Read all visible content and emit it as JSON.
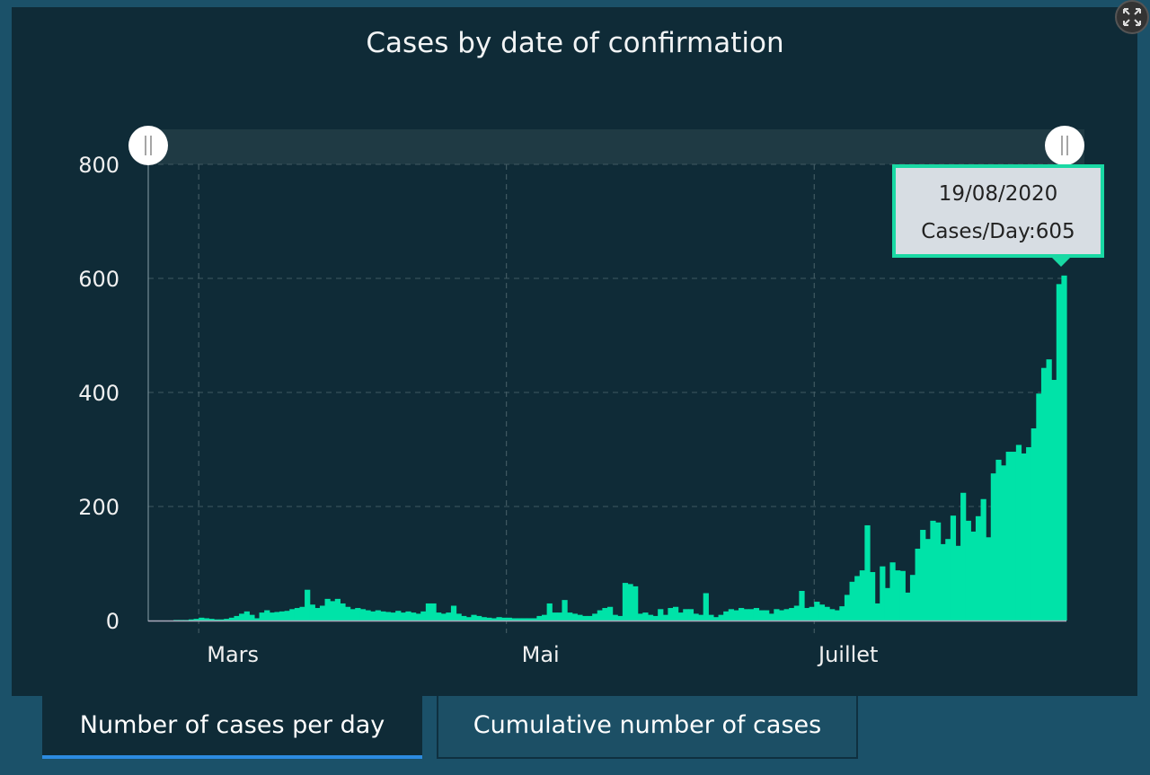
{
  "colors": {
    "bar": "#00e3a8",
    "panel": "#0f2b37",
    "background": "#1b5169",
    "tab_underline": "#2c8be0"
  },
  "header": {
    "expand_icon": "expand-arrows-icon"
  },
  "tooltip": {
    "date": "19/08/2020",
    "label": "Cases/Day:605"
  },
  "tabs": [
    {
      "label": "Number of cases per day",
      "active": true
    },
    {
      "label": "Cumulative number of cases",
      "active": false
    }
  ],
  "chart_data": {
    "type": "bar",
    "title": "Cases by  date of confirmation",
    "xlabel": "",
    "ylabel": "",
    "date_range": [
      "2020-02-20",
      "2020-08-19"
    ],
    "ylim": [
      0,
      800
    ],
    "yticks": [
      0,
      200,
      400,
      600,
      800
    ],
    "xtick_labels": [
      {
        "date": "2020-03-01",
        "label": "Mars"
      },
      {
        "date": "2020-05-01",
        "label": "Mai"
      },
      {
        "date": "2020-07-01",
        "label": "Juillet"
      }
    ],
    "grid": true,
    "range_slider": true,
    "values": [
      0,
      0,
      0,
      0,
      0,
      1,
      1,
      1,
      2,
      3,
      5,
      4,
      3,
      2,
      2,
      3,
      5,
      8,
      12,
      16,
      10,
      4,
      14,
      18,
      14,
      15,
      16,
      17,
      20,
      22,
      24,
      54,
      28,
      22,
      26,
      38,
      34,
      38,
      30,
      24,
      20,
      22,
      20,
      18,
      16,
      18,
      16,
      15,
      14,
      17,
      14,
      16,
      14,
      12,
      16,
      30,
      30,
      14,
      12,
      14,
      26,
      12,
      8,
      6,
      10,
      8,
      6,
      5,
      4,
      6,
      5,
      5,
      4,
      4,
      4,
      4,
      4,
      8,
      10,
      30,
      14,
      14,
      36,
      14,
      12,
      10,
      8,
      8,
      12,
      18,
      22,
      24,
      10,
      8,
      66,
      64,
      60,
      12,
      14,
      10,
      8,
      20,
      10,
      22,
      24,
      14,
      20,
      20,
      12,
      10,
      48,
      10,
      6,
      10,
      16,
      20,
      18,
      22,
      20,
      20,
      22,
      18,
      18,
      12,
      20,
      18,
      20,
      22,
      26,
      52,
      22,
      24,
      33,
      28,
      24,
      20,
      18,
      25,
      45,
      68,
      78,
      88,
      167,
      85,
      30,
      95,
      57,
      102,
      88,
      87,
      49,
      80,
      126,
      159,
      143,
      175,
      172,
      134,
      143,
      184,
      131,
      224,
      175,
      156,
      183,
      213,
      146,
      258,
      282,
      272,
      296,
      296,
      308,
      293,
      304,
      337,
      398,
      443,
      458,
      422,
      590,
      605
    ]
  }
}
